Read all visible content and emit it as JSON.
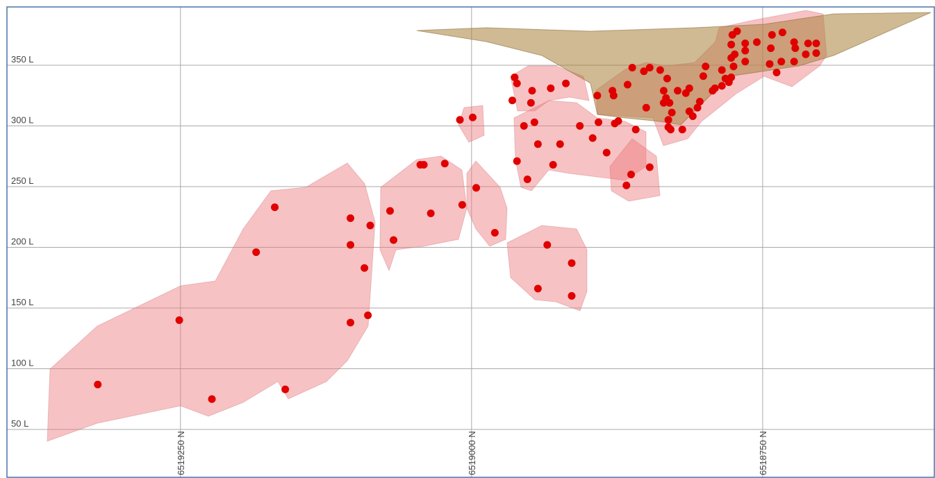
{
  "chart_data": {
    "type": "scatter",
    "xlim": [
      6519399,
      6518602
    ],
    "ylim": [
      10,
      398
    ],
    "xticks": [
      {
        "value": 6519250,
        "label": "6519250 N"
      },
      {
        "value": 6519000,
        "label": "6519000 N"
      },
      {
        "value": 6518750,
        "label": "6518750 N"
      }
    ],
    "yticks": [
      {
        "value": 50,
        "label": "50 L"
      },
      {
        "value": 100,
        "label": "100 L"
      },
      {
        "value": 150,
        "label": "150 L"
      },
      {
        "value": 200,
        "label": "200 L"
      },
      {
        "value": 250,
        "label": "250 L"
      },
      {
        "value": 300,
        "label": "300 L"
      },
      {
        "value": 350,
        "label": "350 L"
      }
    ],
    "grid": true,
    "color": "#e00000",
    "x": [
      6519321,
      6519251,
      6519223,
      6519185,
      6519169,
      6519160,
      6519104,
      6519104,
      6519092,
      6519087,
      6519104,
      6519089,
      6519070,
      6519067,
      6519044,
      6519041,
      6519023,
      6519035,
      6519008,
      6518996,
      6518980,
      6519010,
      6518999,
      6518963,
      6518961,
      6518965,
      6518948,
      6518949,
      6518932,
      6518919,
      6518955,
      6518946,
      6518961,
      6518952,
      6518943,
      6518924,
      6518930,
      6518907,
      6518896,
      6518891,
      6518884,
      6518877,
      6518874,
      6518859,
      6518863,
      6518867,
      6518847,
      6518935,
      6518914,
      6518943,
      6518914,
      6518892,
      6518879,
      6518878,
      6518866,
      6518862,
      6518852,
      6518847,
      6518838,
      6518832,
      6518835,
      6518833,
      6518835,
      6518830,
      6518828,
      6518831,
      6518831,
      6518829,
      6518819,
      6518850,
      6518823,
      6518816,
      6518813,
      6518813,
      6518810,
      6518806,
      6518804,
      6518801,
      6518799,
      6518793,
      6518791,
      6518785,
      6518785,
      6518782,
      6518779,
      6518777,
      6518777,
      6518777,
      6518775,
      6518774,
      6518772,
      6518776,
      6518765,
      6518765,
      6518765,
      6518755,
      6518743,
      6518744,
      6518742,
      6518738,
      6518734,
      6518733,
      6518723,
      6518722,
      6518723,
      6518713,
      6518711,
      6518704,
      6518704
    ],
    "values": [
      87,
      140,
      75,
      196,
      233,
      83,
      224,
      202,
      183,
      218,
      138,
      144,
      230,
      206,
      268,
      268,
      269,
      228,
      235,
      249,
      212,
      305,
      307,
      340,
      335,
      321,
      329,
      319,
      331,
      335,
      300,
      303,
      271,
      256,
      285,
      285,
      268,
      300,
      290,
      303,
      278,
      302,
      304,
      297,
      260,
      251,
      266,
      202,
      187,
      166,
      160,
      325,
      329,
      325,
      334,
      348,
      345,
      348,
      346,
      339,
      329,
      323,
      319,
      319,
      311,
      305,
      299,
      297,
      297,
      315,
      329,
      327,
      331,
      312,
      308,
      315,
      320,
      341,
      349,
      329,
      331,
      333,
      346,
      339,
      336,
      340,
      356,
      367,
      349,
      359,
      378,
      375,
      368,
      362,
      353,
      369,
      364,
      351,
      375,
      344,
      353,
      377,
      353,
      364,
      369,
      359,
      368,
      368,
      360
    ]
  }
}
